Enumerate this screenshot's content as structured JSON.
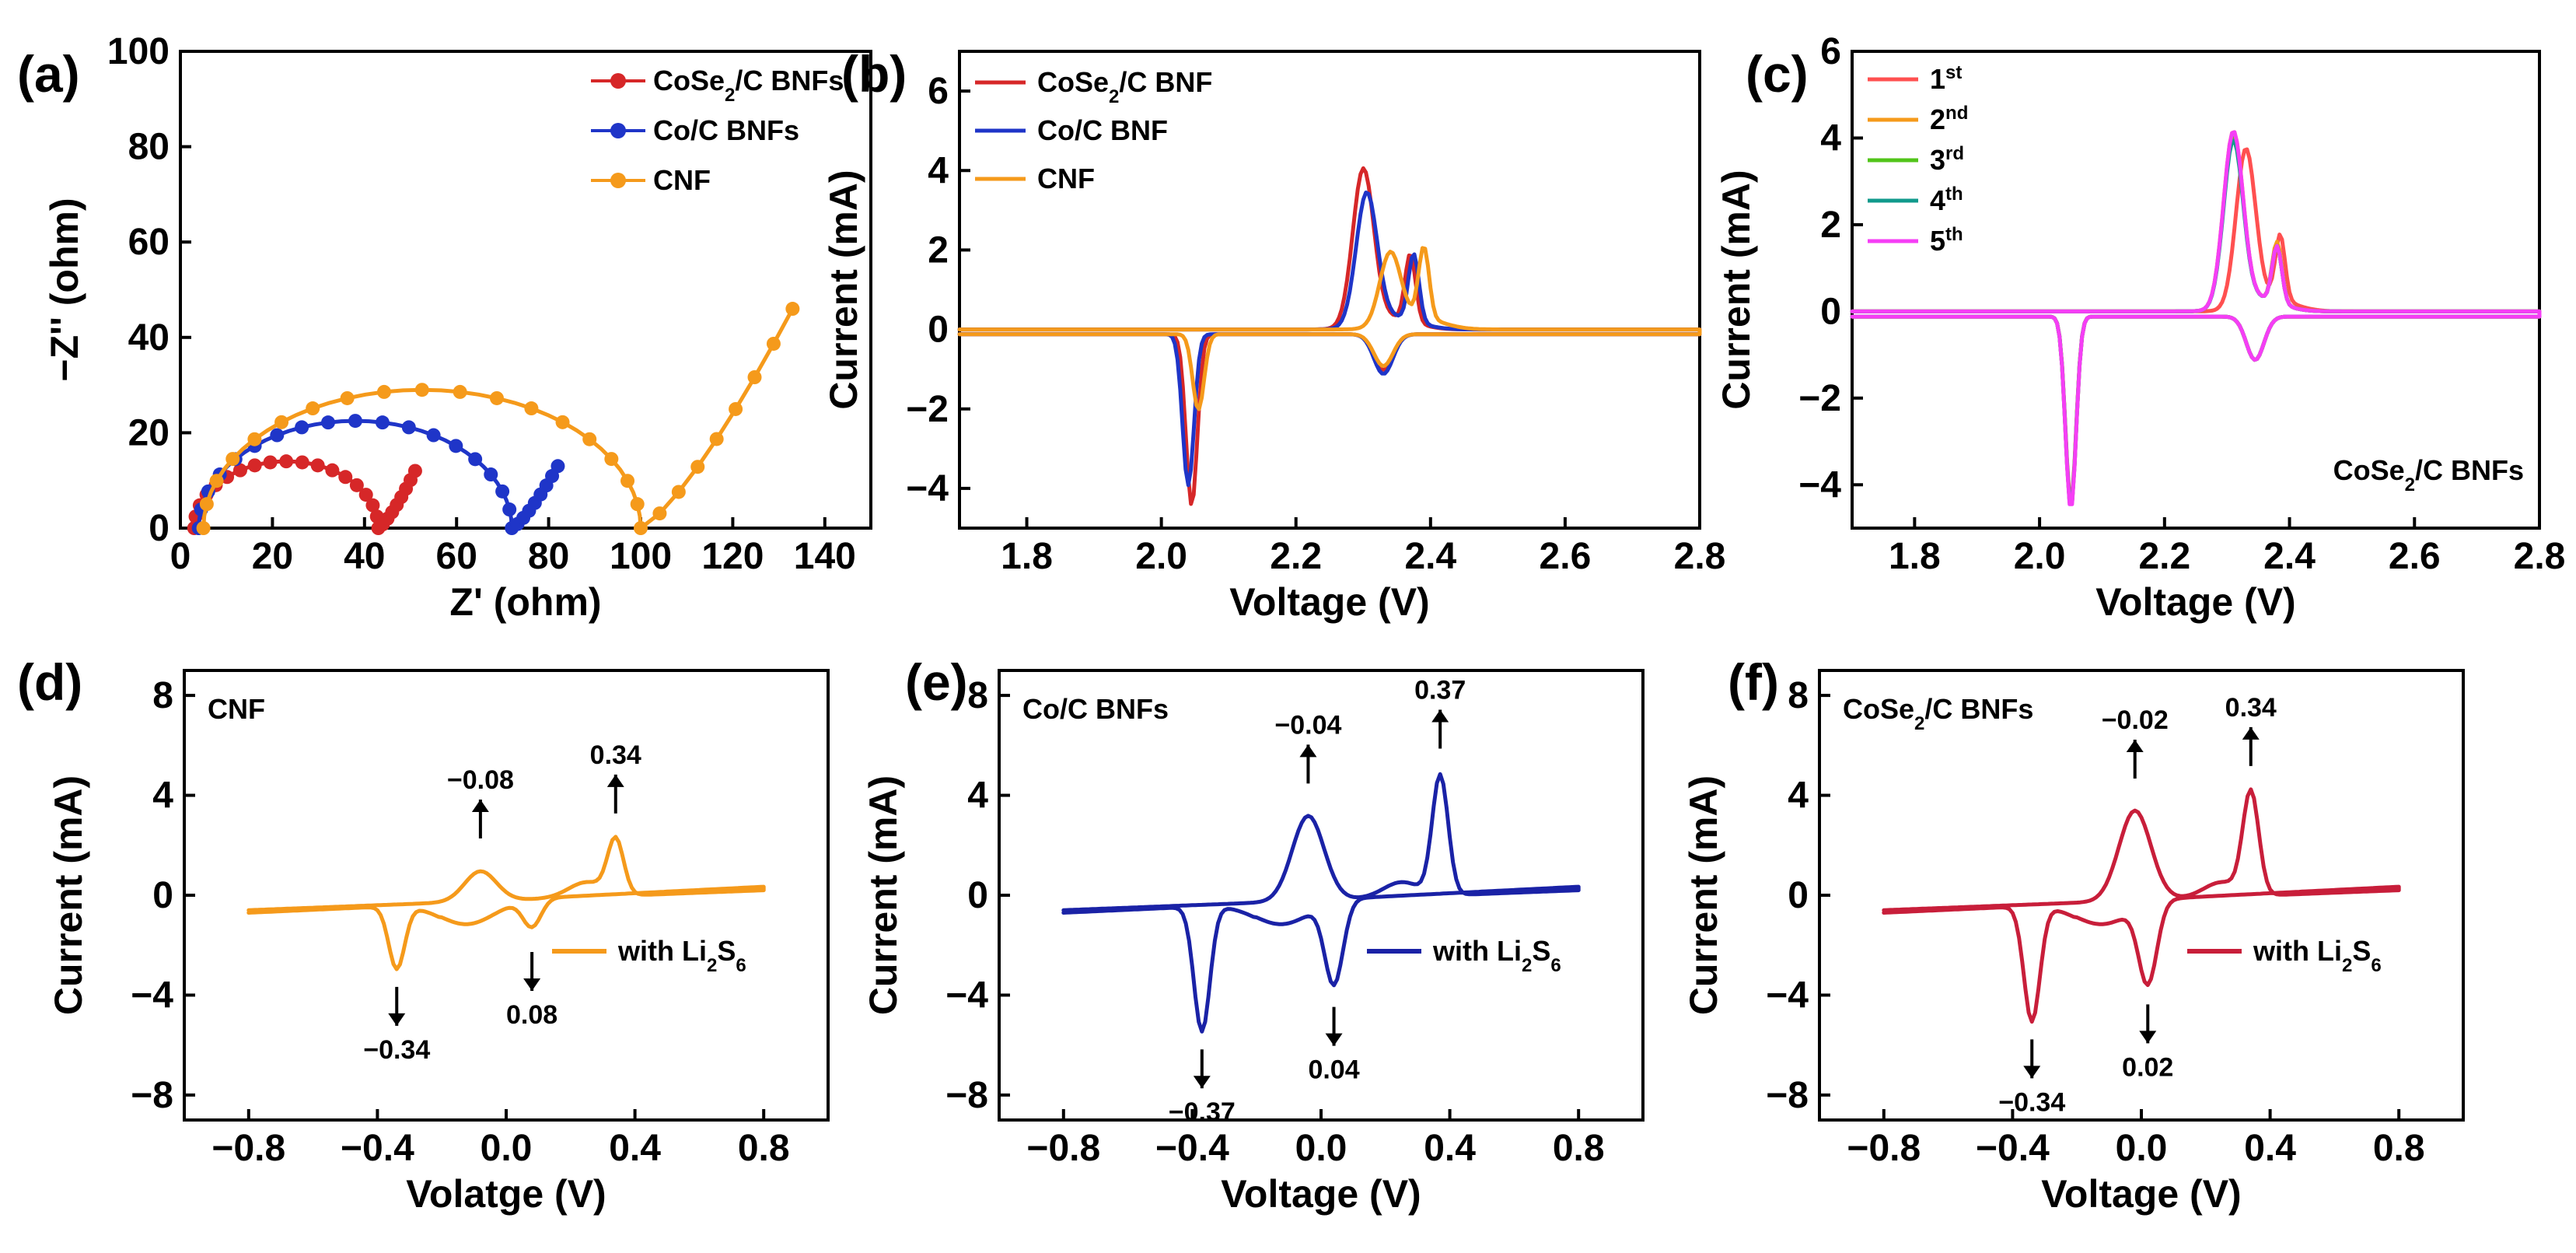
{
  "chart_data": [
    {
      "panel": "(a)",
      "type": "scatter",
      "xlabel": "Z' (ohm)",
      "ylabel": "−Z'' (ohm)",
      "xlim": [
        0,
        150
      ],
      "ylim": [
        0,
        100
      ],
      "xticks": [
        "0",
        "20",
        "40",
        "60",
        "80",
        "100",
        "120",
        "140"
      ],
      "yticks": [
        "0",
        "20",
        "40",
        "60",
        "80",
        "100"
      ],
      "legend_position": "top-right",
      "series": [
        {
          "name": "CoSe2/C BNFs",
          "label_main": "CoSe",
          "label_sub": "2",
          "label_rest": "/C BNFs",
          "color": "#d62728",
          "semicircle": {
            "start": 3,
            "end": 43,
            "height": 14
          },
          "tail": {
            "start": 43,
            "end": 51,
            "height": 12
          }
        },
        {
          "name": "Co/C BNFs",
          "label_main": "Co/C BNFs",
          "color": "#1f35c8",
          "semicircle": {
            "start": 4,
            "end": 72,
            "height": 22.5
          },
          "tail": {
            "start": 72,
            "end": 82,
            "height": 13
          }
        },
        {
          "name": "CNF",
          "label_main": "CNF",
          "color": "#f59a1b",
          "semicircle": {
            "start": 5,
            "end": 100,
            "height": 29
          },
          "tail": {
            "start": 100,
            "end": 133,
            "height": 46
          }
        }
      ]
    },
    {
      "panel": "(b)",
      "type": "line",
      "xlabel": "Voltage (V)",
      "ylabel": "Current (mA)",
      "xlim": [
        1.7,
        2.8
      ],
      "ylim": [
        -5,
        7
      ],
      "xticks": [
        "1.8",
        "2.0",
        "2.2",
        "2.4",
        "2.6",
        "2.8"
      ],
      "yticks": [
        "-4",
        "-2",
        "0",
        "2",
        "4",
        "6"
      ],
      "legend_position": "top-left",
      "series": [
        {
          "name": "CoSe2/C BNF",
          "label_main": "CoSe",
          "label_sub": "2",
          "label_rest": "/C BNF",
          "color": "#d62728",
          "oxidation_peaks": [
            [
              2.3,
              3.9
            ],
            [
              2.37,
              1.7
            ]
          ],
          "reduction_peaks": [
            [
              2.045,
              -4.3
            ],
            [
              2.33,
              -0.9
            ]
          ]
        },
        {
          "name": "Co/C BNF",
          "label_main": "Co/C BNF",
          "color": "#1f35c8",
          "oxidation_peaks": [
            [
              2.305,
              3.3
            ],
            [
              2.375,
              1.7
            ]
          ],
          "reduction_peaks": [
            [
              2.04,
              -3.8
            ],
            [
              2.33,
              -1.0
            ]
          ]
        },
        {
          "name": "CNF",
          "label_main": "CNF",
          "color": "#f59a1b",
          "oxidation_peaks": [
            [
              2.34,
              1.8
            ],
            [
              2.39,
              1.8
            ]
          ],
          "reduction_peaks": [
            [
              2.055,
              -1.9
            ],
            [
              2.33,
              -0.8
            ]
          ]
        }
      ]
    },
    {
      "panel": "(c)",
      "type": "line",
      "xlabel": "Voltage (V)",
      "ylabel": "Current (mA)",
      "xlim": [
        1.7,
        2.8
      ],
      "ylim": [
        -5,
        6
      ],
      "xticks": [
        "1.8",
        "2.0",
        "2.2",
        "2.4",
        "2.6",
        "2.8"
      ],
      "yticks": [
        "-4",
        "-2",
        "0",
        "2",
        "4",
        "6"
      ],
      "legend_position": "top-left",
      "annotation": {
        "main": "CoSe",
        "sub": "2",
        "rest": "/C BNFs"
      },
      "series": [
        {
          "name": "1st",
          "label_main": "1",
          "label_sup": "st",
          "color": "#ff5050",
          "oxidation_peaks": [
            [
              2.33,
              3.6
            ],
            [
              2.385,
              1.5
            ]
          ],
          "reduction_peaks": [
            [
              2.05,
              -4.3
            ],
            [
              2.345,
              -1.0
            ]
          ]
        },
        {
          "name": "2nd",
          "label_main": "2",
          "label_sup": "nd",
          "color": "#f59a1b",
          "oxidation_peaks": [
            [
              2.31,
              4.0
            ],
            [
              2.38,
              1.4
            ]
          ],
          "reduction_peaks": [
            [
              2.05,
              -4.4
            ],
            [
              2.345,
              -1.0
            ]
          ]
        },
        {
          "name": "3rd",
          "label_main": "3",
          "label_sup": "rd",
          "color": "#52c41a",
          "oxidation_peaks": [
            [
              2.31,
              3.9
            ],
            [
              2.38,
              1.3
            ]
          ],
          "reduction_peaks": [
            [
              2.05,
              -4.4
            ],
            [
              2.345,
              -1.0
            ]
          ]
        },
        {
          "name": "4th",
          "label_main": "4",
          "label_sup": "th",
          "color": "#119a8c",
          "oxidation_peaks": [
            [
              2.31,
              3.8
            ],
            [
              2.38,
              1.3
            ]
          ],
          "reduction_peaks": [
            [
              2.05,
              -4.4
            ],
            [
              2.345,
              -1.0
            ]
          ]
        },
        {
          "name": "5th",
          "label_main": "5",
          "label_sup": "th",
          "color": "#f53ef5",
          "oxidation_peaks": [
            [
              2.31,
              4.0
            ],
            [
              2.38,
              1.3
            ]
          ],
          "reduction_peaks": [
            [
              2.05,
              -4.45
            ],
            [
              2.345,
              -1.0
            ]
          ]
        }
      ]
    },
    {
      "panel": "(d)",
      "type": "line",
      "title": "CNF",
      "xlabel": "Volatge (V)",
      "ylabel": "Current (mA)",
      "xlim": [
        -1.0,
        1.0
      ],
      "ylim": [
        -9,
        9
      ],
      "xticks": [
        "-0.8",
        "-0.4",
        "0.0",
        "0.4",
        "0.8"
      ],
      "yticks": [
        "-8",
        "-4",
        "0",
        "4",
        "8"
      ],
      "legend": {
        "main": "with Li",
        "sub1": "2",
        "mid": "S",
        "sub2": "6"
      },
      "color": "#f59a1b",
      "oxidation_peaks": [
        [
          -0.08,
          1.4
        ],
        [
          0.34,
          2.4
        ]
      ],
      "reduction_peaks": [
        [
          -0.34,
          -2.8
        ],
        [
          0.08,
          -1.4
        ]
      ],
      "labels": [
        "−0.08",
        "0.34",
        "−0.34",
        "0.08"
      ]
    },
    {
      "panel": "(e)",
      "type": "line",
      "title": "Co/C BNFs",
      "xlabel": "Voltage (V)",
      "ylabel": "Current (mA)",
      "xlim": [
        -1.0,
        1.0
      ],
      "ylim": [
        -9,
        9
      ],
      "xticks": [
        "-0.8",
        "-0.4",
        "0.0",
        "0.4",
        "0.8"
      ],
      "yticks": [
        "-8",
        "-4",
        "0",
        "4",
        "8"
      ],
      "legend": {
        "main": "with Li",
        "sub1": "2",
        "mid": "S",
        "sub2": "6"
      },
      "color": "#1a22a6",
      "oxidation_peaks": [
        [
          -0.04,
          3.6
        ],
        [
          0.37,
          5.0
        ]
      ],
      "reduction_peaks": [
        [
          -0.37,
          -5.3
        ],
        [
          0.04,
          -3.6
        ]
      ],
      "labels": [
        "−0.04",
        "0.37",
        "−0.37",
        "0.04"
      ]
    },
    {
      "panel": "(f)",
      "type": "line",
      "title_main": "CoSe",
      "title_sub": "2",
      "title_rest": "/C BNFs",
      "xlabel": "Voltage (V)",
      "ylabel": "Current (mA)",
      "xlim": [
        -1.0,
        1.0
      ],
      "ylim": [
        -9,
        9
      ],
      "xticks": [
        "-0.8",
        "-0.4",
        "0.0",
        "0.4",
        "0.8"
      ],
      "yticks": [
        "-8",
        "-4",
        "0",
        "4",
        "8"
      ],
      "legend": {
        "main": "with Li",
        "sub1": "2",
        "mid": "S",
        "sub2": "6"
      },
      "color": "#c81e3a",
      "oxidation_peaks": [
        [
          -0.02,
          3.8
        ],
        [
          0.34,
          4.3
        ]
      ],
      "reduction_peaks": [
        [
          -0.34,
          -4.9
        ],
        [
          0.02,
          -3.5
        ]
      ],
      "labels": [
        "−0.02",
        "0.34",
        "−0.34",
        "0.02"
      ]
    }
  ]
}
